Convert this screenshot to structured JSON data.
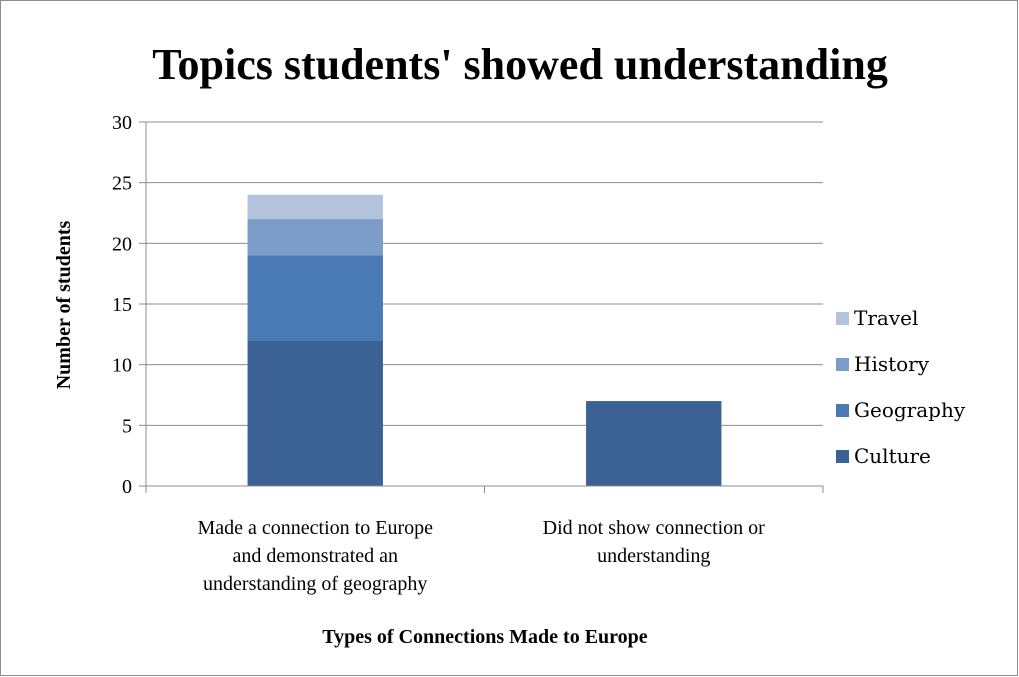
{
  "chart_data": {
    "type": "bar",
    "stacked": true,
    "title": "Topics students' showed understanding",
    "xlabel": "Types of Connections Made to Europe",
    "ylabel": "Number of students",
    "ylim": [
      0,
      30
    ],
    "yticks": [
      0,
      5,
      10,
      15,
      20,
      25,
      30
    ],
    "grid": true,
    "legend_position": "right",
    "categories": [
      [
        "Made a connection to Europe",
        "and demonstrated an",
        "understanding of geography"
      ],
      [
        "Did not show connection or",
        "understanding"
      ]
    ],
    "series": [
      {
        "name": "Culture",
        "values": [
          12,
          7
        ],
        "color": "#3c6295"
      },
      {
        "name": "Geography",
        "values": [
          7,
          0
        ],
        "color": "#4a7ab5"
      },
      {
        "name": "History",
        "values": [
          3,
          0
        ],
        "color": "#7b9dc8"
      },
      {
        "name": "Travel",
        "values": [
          2,
          0
        ],
        "color": "#b3c3de"
      }
    ]
  }
}
